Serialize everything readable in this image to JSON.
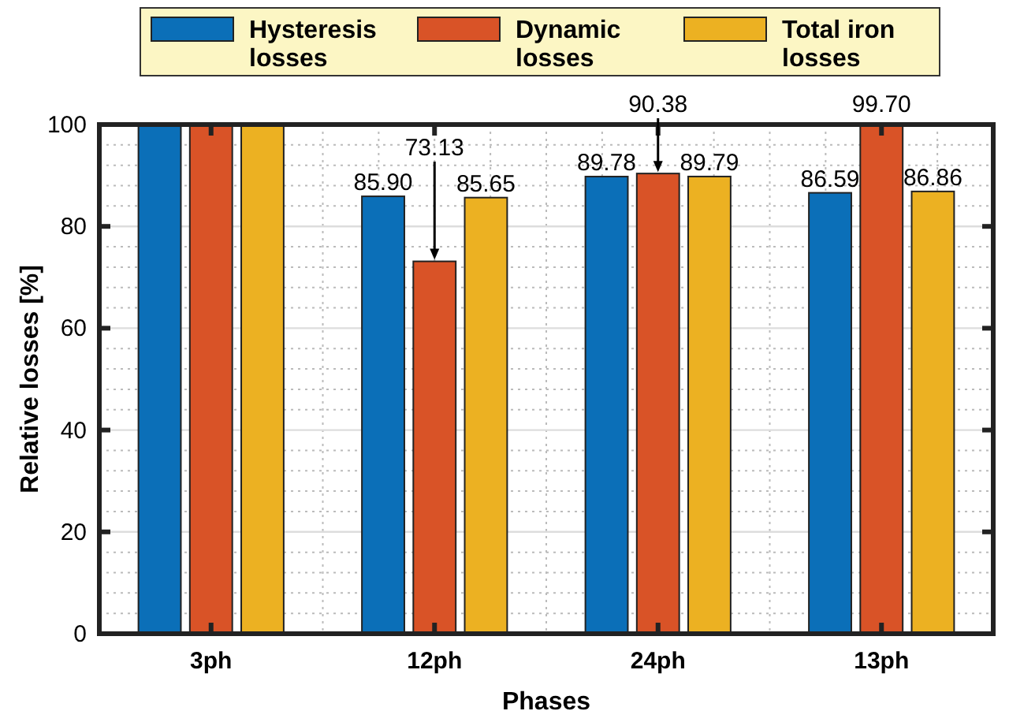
{
  "chart_data": {
    "type": "bar",
    "xlabel": "Phases",
    "ylabel": "Relative losses [%]",
    "categories": [
      "3ph",
      "12ph",
      "24ph",
      "13ph"
    ],
    "series": [
      {
        "name": "Hysteresis losses",
        "color": "#0b6fb8",
        "values": [
          100,
          85.9,
          89.78,
          86.59
        ],
        "value_labels": [
          null,
          "85.90",
          "89.78",
          "86.59"
        ]
      },
      {
        "name": "Dynamic losses",
        "color": "#d95327",
        "values": [
          100,
          73.13,
          90.38,
          99.7
        ],
        "value_labels": [
          null,
          "73.13",
          "90.38",
          "99.70"
        ]
      },
      {
        "name": "Total iron losses",
        "color": "#ecb122",
        "values": [
          100,
          85.65,
          89.79,
          86.86
        ],
        "value_labels": [
          null,
          "85.65",
          "89.79",
          "86.86"
        ]
      }
    ],
    "ylim": [
      0,
      100
    ],
    "yticks": [
      0,
      20,
      40,
      60,
      80,
      100
    ],
    "grid": true,
    "legend": "top"
  }
}
